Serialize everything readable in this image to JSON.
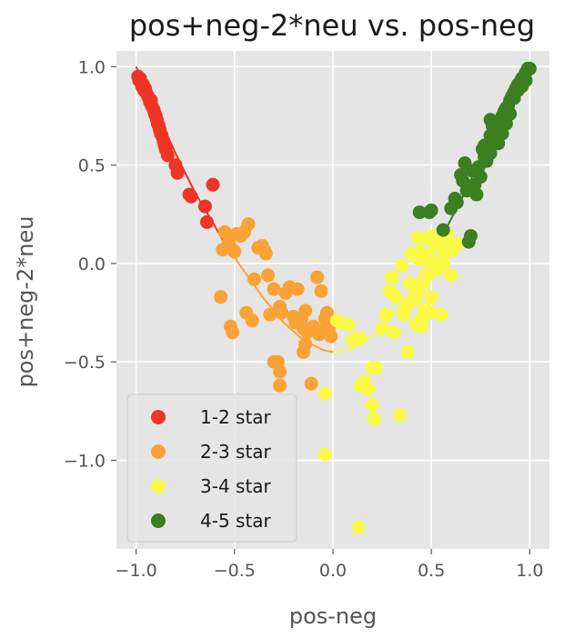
{
  "chart_data": {
    "type": "scatter",
    "title": "pos+neg-2*neu vs. pos-neg",
    "xlabel": "pos-neg",
    "ylabel": "pos+neg-2*neu",
    "xlim": [
      -1.1,
      1.1
    ],
    "ylim": [
      -1.45,
      1.08
    ],
    "x_ticks": [
      -1.0,
      -0.5,
      0.0,
      0.5,
      1.0
    ],
    "x_tick_labels": [
      "−1.0",
      "−0.5",
      "0.0",
      "0.5",
      "1.0"
    ],
    "y_ticks": [
      1.0,
      0.5,
      0.0,
      -0.5,
      -1.0
    ],
    "y_tick_labels": [
      "1.0",
      "0.5",
      "0.0",
      "−0.5",
      "−1.0"
    ],
    "grid": true,
    "legend_position": "lower-left",
    "background": "#e5e5e5",
    "series": [
      {
        "name": "1-2 star",
        "color": "#ee3424",
        "points": [
          [
            -0.99,
            0.95
          ],
          [
            -0.985,
            0.93
          ],
          [
            -0.98,
            0.94
          ],
          [
            -0.975,
            0.92
          ],
          [
            -0.97,
            0.9
          ],
          [
            -0.965,
            0.91
          ],
          [
            -0.96,
            0.88
          ],
          [
            -0.955,
            0.89
          ],
          [
            -0.95,
            0.87
          ],
          [
            -0.94,
            0.85
          ],
          [
            -0.935,
            0.84
          ],
          [
            -0.93,
            0.82
          ],
          [
            -0.925,
            0.83
          ],
          [
            -0.92,
            0.8
          ],
          [
            -0.91,
            0.78
          ],
          [
            -0.905,
            0.76
          ],
          [
            -0.9,
            0.75
          ],
          [
            -0.895,
            0.73
          ],
          [
            -0.89,
            0.71
          ],
          [
            -0.885,
            0.7
          ],
          [
            -0.88,
            0.68
          ],
          [
            -0.875,
            0.66
          ],
          [
            -0.87,
            0.65
          ],
          [
            -0.86,
            0.62
          ],
          [
            -0.855,
            0.6
          ],
          [
            -0.85,
            0.58
          ],
          [
            -0.84,
            0.55
          ],
          [
            -0.8,
            0.5
          ],
          [
            -0.79,
            0.46
          ],
          [
            -0.73,
            0.35
          ],
          [
            -0.72,
            0.34
          ],
          [
            -0.65,
            0.29
          ],
          [
            -0.64,
            0.21
          ],
          [
            -0.61,
            0.4
          ]
        ],
        "fit_line": [
          [
            -1.0,
            1.0
          ],
          [
            -0.9,
            0.78
          ],
          [
            -0.8,
            0.56
          ],
          [
            -0.7,
            0.36
          ],
          [
            -0.6,
            0.19
          ],
          [
            -0.55,
            0.1
          ]
        ]
      },
      {
        "name": "2-3 star",
        "color": "#f9a235",
        "points": [
          [
            -0.56,
            0.07
          ],
          [
            -0.55,
            0.16
          ],
          [
            -0.53,
            0.11
          ],
          [
            -0.52,
            0.08
          ],
          [
            -0.5,
            0.06
          ],
          [
            -0.49,
            0.15
          ],
          [
            -0.47,
            0.14
          ],
          [
            -0.45,
            0.16
          ],
          [
            -0.43,
            0.2
          ],
          [
            -0.4,
            -0.08
          ],
          [
            -0.38,
            0.08
          ],
          [
            -0.36,
            0.09
          ],
          [
            -0.35,
            0.07
          ],
          [
            -0.34,
            0.05
          ],
          [
            -0.33,
            -0.06
          ],
          [
            -0.3,
            -0.13
          ],
          [
            -0.27,
            -0.22
          ],
          [
            -0.26,
            -0.25
          ],
          [
            -0.24,
            -0.15
          ],
          [
            -0.22,
            -0.12
          ],
          [
            -0.2,
            -0.27
          ],
          [
            -0.19,
            -0.3
          ],
          [
            -0.18,
            -0.13
          ],
          [
            -0.16,
            -0.28
          ],
          [
            -0.15,
            -0.33
          ],
          [
            -0.14,
            -0.24
          ],
          [
            -0.13,
            -0.35
          ],
          [
            -0.1,
            -0.32
          ],
          [
            -0.08,
            -0.07
          ],
          [
            -0.07,
            -0.36
          ],
          [
            -0.06,
            -0.14
          ],
          [
            -0.05,
            -0.34
          ],
          [
            -0.04,
            -0.28
          ],
          [
            -0.03,
            -0.25
          ],
          [
            -0.02,
            -0.33
          ],
          [
            -0.01,
            -0.37
          ],
          [
            -0.3,
            -0.5
          ],
          [
            -0.28,
            -0.5
          ],
          [
            -0.27,
            -0.55
          ],
          [
            -0.27,
            -0.62
          ],
          [
            -0.15,
            -0.45
          ],
          [
            -0.14,
            -0.41
          ],
          [
            -0.11,
            -0.61
          ],
          [
            -0.57,
            -0.17
          ],
          [
            -0.52,
            -0.32
          ],
          [
            -0.51,
            -0.35
          ],
          [
            -0.44,
            -0.25
          ],
          [
            -0.41,
            -0.29
          ],
          [
            -0.32,
            -0.26
          ]
        ],
        "fit_line": [
          [
            -0.55,
            0.1
          ],
          [
            -0.45,
            -0.04
          ],
          [
            -0.35,
            -0.18
          ],
          [
            -0.25,
            -0.3
          ],
          [
            -0.15,
            -0.39
          ],
          [
            -0.05,
            -0.44
          ],
          [
            0.0,
            -0.45
          ]
        ]
      },
      {
        "name": "3-4 star",
        "color": "#fbfb45",
        "points": [
          [
            -0.04,
            -0.66
          ],
          [
            -0.04,
            -0.97
          ],
          [
            0.02,
            -0.29
          ],
          [
            0.04,
            -0.3
          ],
          [
            0.08,
            -0.31
          ],
          [
            0.1,
            -0.39
          ],
          [
            0.12,
            -0.38
          ],
          [
            0.14,
            -0.38
          ],
          [
            0.13,
            -1.34
          ],
          [
            0.14,
            -0.62
          ],
          [
            0.16,
            -0.6
          ],
          [
            0.18,
            -0.64
          ],
          [
            0.2,
            -0.72
          ],
          [
            0.21,
            -0.79
          ],
          [
            0.2,
            -0.53
          ],
          [
            0.22,
            -0.53
          ],
          [
            0.25,
            -0.33
          ],
          [
            0.27,
            -0.26
          ],
          [
            0.31,
            -0.35
          ],
          [
            0.3,
            -0.07
          ],
          [
            0.32,
            -0.17
          ],
          [
            0.34,
            -0.77
          ],
          [
            0.36,
            -0.26
          ],
          [
            0.37,
            -0.22
          ],
          [
            0.38,
            -0.45
          ],
          [
            0.4,
            0.05
          ],
          [
            0.41,
            -0.19
          ],
          [
            0.42,
            -0.31
          ],
          [
            0.43,
            -0.15
          ],
          [
            0.44,
            0.02
          ],
          [
            0.45,
            -0.32
          ],
          [
            0.45,
            0.06
          ],
          [
            0.46,
            -0.1
          ],
          [
            0.47,
            -0.23
          ],
          [
            0.48,
            0.04
          ],
          [
            0.49,
            -0.05
          ],
          [
            0.5,
            0.02
          ],
          [
            0.5,
            -0.17
          ],
          [
            0.51,
            0.14
          ],
          [
            0.52,
            0.1
          ],
          [
            0.53,
            0.11
          ],
          [
            0.54,
            0.09
          ],
          [
            0.55,
            -0.26
          ],
          [
            0.56,
            0.0
          ],
          [
            0.57,
            0.05
          ],
          [
            0.58,
            0.15
          ],
          [
            0.6,
            0.1
          ],
          [
            0.6,
            -0.06
          ],
          [
            0.61,
            0.07
          ],
          [
            0.63,
            0.1
          ],
          [
            0.45,
            -0.28
          ],
          [
            0.39,
            -0.1
          ],
          [
            0.43,
            0.13
          ],
          [
            0.48,
            0.13
          ],
          [
            0.53,
            -0.03
          ],
          [
            0.35,
            -0.01
          ],
          [
            0.5,
            -0.25
          ],
          [
            0.29,
            -0.14
          ]
        ],
        "fit_line": [
          [
            0.0,
            -0.45
          ],
          [
            0.1,
            -0.43
          ],
          [
            0.2,
            -0.37
          ],
          [
            0.3,
            -0.27
          ],
          [
            0.4,
            -0.13
          ],
          [
            0.5,
            0.04
          ],
          [
            0.55,
            0.13
          ]
        ]
      },
      {
        "name": "4-5 star",
        "color": "#3b7f20",
        "points": [
          [
            0.44,
            0.26
          ],
          [
            0.49,
            0.26
          ],
          [
            0.5,
            0.27
          ],
          [
            0.56,
            0.17
          ],
          [
            0.6,
            0.28
          ],
          [
            0.62,
            0.33
          ],
          [
            0.63,
            0.31
          ],
          [
            0.65,
            0.45
          ],
          [
            0.66,
            0.42
          ],
          [
            0.67,
            0.51
          ],
          [
            0.68,
            0.37
          ],
          [
            0.69,
            0.11
          ],
          [
            0.7,
            0.14
          ],
          [
            0.71,
            0.47
          ],
          [
            0.72,
            0.4
          ],
          [
            0.73,
            0.35
          ],
          [
            0.74,
            0.49
          ],
          [
            0.75,
            0.44
          ],
          [
            0.76,
            0.58
          ],
          [
            0.77,
            0.54
          ],
          [
            0.78,
            0.52
          ],
          [
            0.79,
            0.6
          ],
          [
            0.8,
            0.56
          ],
          [
            0.8,
            0.65
          ],
          [
            0.81,
            0.7
          ],
          [
            0.82,
            0.63
          ],
          [
            0.83,
            0.67
          ],
          [
            0.84,
            0.72
          ],
          [
            0.84,
            0.61
          ],
          [
            0.85,
            0.69
          ],
          [
            0.86,
            0.75
          ],
          [
            0.86,
            0.66
          ],
          [
            0.87,
            0.77
          ],
          [
            0.88,
            0.71
          ],
          [
            0.88,
            0.79
          ],
          [
            0.89,
            0.8
          ],
          [
            0.9,
            0.76
          ],
          [
            0.9,
            0.83
          ],
          [
            0.91,
            0.85
          ],
          [
            0.92,
            0.84
          ],
          [
            0.92,
            0.87
          ],
          [
            0.93,
            0.89
          ],
          [
            0.94,
            0.88
          ],
          [
            0.94,
            0.91
          ],
          [
            0.95,
            0.92
          ],
          [
            0.96,
            0.94
          ],
          [
            0.96,
            0.9
          ],
          [
            0.97,
            0.95
          ],
          [
            0.98,
            0.97
          ],
          [
            0.99,
            0.99
          ],
          [
            1.0,
            0.99
          ],
          [
            0.98,
            0.93
          ],
          [
            0.8,
            0.73
          ],
          [
            0.77,
            0.6
          ]
        ],
        "fit_line": [
          [
            0.55,
            0.13
          ],
          [
            0.65,
            0.32
          ],
          [
            0.75,
            0.53
          ],
          [
            0.85,
            0.74
          ],
          [
            0.95,
            0.92
          ],
          [
            1.0,
            1.0
          ]
        ]
      }
    ]
  }
}
